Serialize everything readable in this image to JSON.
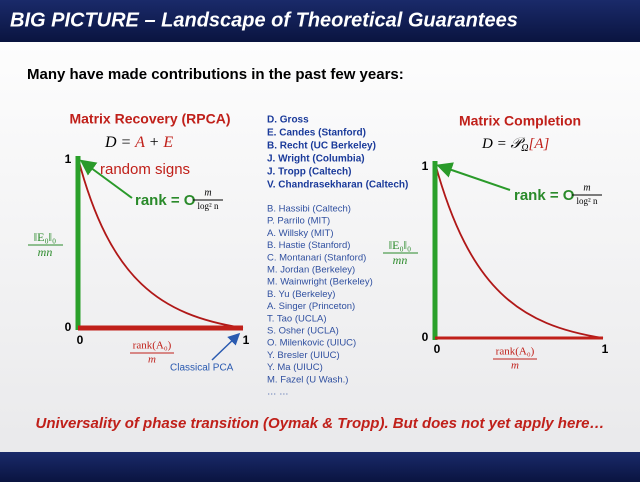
{
  "header": {
    "title": "BIG PICTURE – Landscape of Theoretical Guarantees"
  },
  "subtitle": "Many have made contributions in the past few years:",
  "left_panel": {
    "title": "Matrix Recovery (RPCA)",
    "equation": {
      "lhs": "D =",
      "a": "A",
      "plus": "+",
      "e": "E"
    },
    "annotation": "random signs",
    "rank": {
      "prefix": "rank = O",
      "numerator": "m",
      "denominator": "log² n"
    },
    "y_label": {
      "numerator": "‖E₀‖₀",
      "denominator": "mn"
    },
    "x_label": {
      "numerator": "rank(A₀)",
      "denominator": "m"
    },
    "y_top": "1",
    "y_bottom": "0",
    "x_left": "0",
    "x_right": "1",
    "note": "Classical PCA"
  },
  "right_panel": {
    "title": "Matrix Completion",
    "equation": {
      "lhs": "D = 𝒫",
      "sub": "Ω",
      "bracket": "[A]"
    },
    "rank": {
      "prefix": "rank = O",
      "numerator": "m",
      "denominator": "log² n"
    },
    "y_label": {
      "numerator": "‖E₀‖₀",
      "denominator": "mn"
    },
    "x_label": {
      "numerator": "rank(A₀)",
      "denominator": "m"
    },
    "y_top": "1",
    "y_bottom": "0",
    "x_left": "0",
    "x_right": "1"
  },
  "contributors": {
    "primary": [
      "D. Gross",
      "E. Candes (Stanford)",
      "B. Recht (UC Berkeley)",
      "J. Wright (Columbia)",
      "J. Tropp (Caltech)",
      "V. Chandrasekharan  (Caltech)"
    ],
    "others": [
      "B. Hassibi (Caltech)",
      "P. Parrilo (MIT)",
      "A.  Willsky (MIT)",
      "B.  Hastie (Stanford)",
      "C.  Montanari (Stanford)",
      "M. Jordan (Berkeley)",
      "M. Wainwright (Berkeley)",
      "B. Yu (Berkeley)",
      "A.  Singer (Princeton)",
      "T. Tao (UCLA)",
      "S. Osher (UCLA)",
      "O. Milenkovic (UIUC)",
      "Y. Bresler (UIUC)",
      "Y. Ma (UIUC)",
      "M. Fazel (U Wash.)",
      "… …"
    ]
  },
  "footer": "Universality of phase transition (Oymak & Tropp). But does not yet apply here…"
}
